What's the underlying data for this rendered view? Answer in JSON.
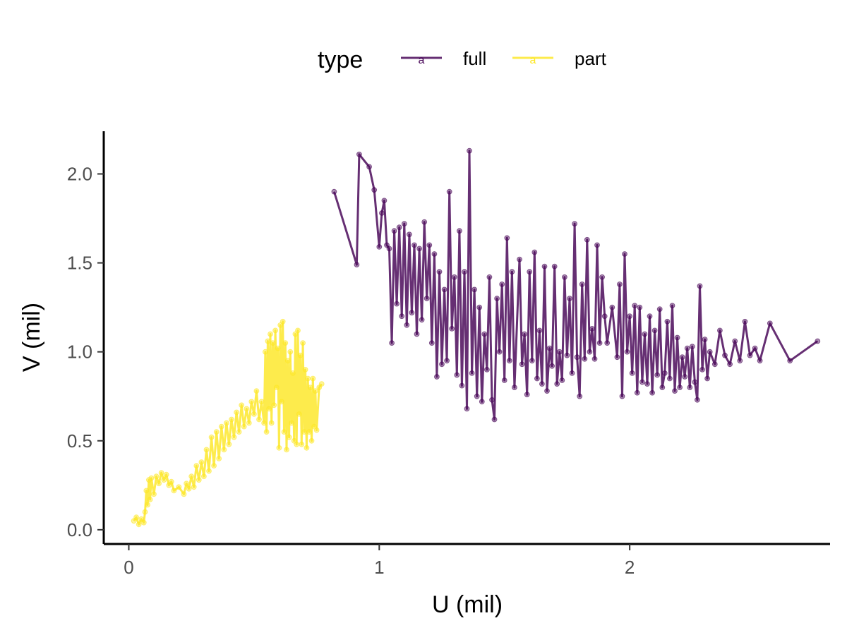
{
  "chart_data": {
    "type": "line",
    "xlabel": "U (mil)",
    "ylabel": "V (mil)",
    "xlim": [
      -0.1,
      2.8
    ],
    "ylim": [
      -0.08,
      2.24
    ],
    "x_ticks": [
      0,
      1,
      2
    ],
    "x_tick_labels": [
      "0",
      "1",
      "2"
    ],
    "y_ticks": [
      0,
      0.5,
      1,
      1.5,
      2
    ],
    "y_tick_labels": [
      "0.0",
      "0.5",
      "1.0",
      "1.5",
      "2.0"
    ],
    "grid": false,
    "legend": {
      "title": "type",
      "position": "top",
      "glyph": "a"
    },
    "series": [
      {
        "name": "full",
        "color": "#440154",
        "points": [
          [
            0.82,
            1.9
          ],
          [
            0.91,
            1.49
          ],
          [
            0.92,
            2.11
          ],
          [
            0.96,
            2.04
          ],
          [
            0.98,
            1.91
          ],
          [
            1.0,
            1.59
          ],
          [
            1.01,
            1.78
          ],
          [
            1.02,
            1.85
          ],
          [
            1.03,
            1.6
          ],
          [
            1.04,
            1.58
          ],
          [
            1.05,
            1.05
          ],
          [
            1.06,
            1.68
          ],
          [
            1.07,
            1.27
          ],
          [
            1.08,
            1.7
          ],
          [
            1.09,
            1.2
          ],
          [
            1.1,
            1.72
          ],
          [
            1.11,
            1.15
          ],
          [
            1.12,
            1.66
          ],
          [
            1.13,
            1.22
          ],
          [
            1.14,
            1.6
          ],
          [
            1.15,
            1.1
          ],
          [
            1.16,
            1.58
          ],
          [
            1.17,
            1.18
          ],
          [
            1.18,
            1.73
          ],
          [
            1.19,
            1.3
          ],
          [
            1.2,
            1.6
          ],
          [
            1.21,
            1.05
          ],
          [
            1.22,
            1.55
          ],
          [
            1.23,
            0.86
          ],
          [
            1.24,
            1.45
          ],
          [
            1.25,
            0.93
          ],
          [
            1.26,
            1.35
          ],
          [
            1.27,
            0.95
          ],
          [
            1.28,
            1.9
          ],
          [
            1.29,
            1.13
          ],
          [
            1.3,
            1.42
          ],
          [
            1.31,
            0.87
          ],
          [
            1.32,
            1.68
          ],
          [
            1.33,
            0.81
          ],
          [
            1.34,
            1.45
          ],
          [
            1.35,
            0.68
          ],
          [
            1.36,
            2.13
          ],
          [
            1.37,
            0.88
          ],
          [
            1.38,
            1.35
          ],
          [
            1.39,
            0.75
          ],
          [
            1.4,
            1.25
          ],
          [
            1.41,
            0.72
          ],
          [
            1.42,
            1.1
          ],
          [
            1.43,
            0.9
          ],
          [
            1.44,
            1.42
          ],
          [
            1.45,
            0.73
          ],
          [
            1.46,
            0.62
          ],
          [
            1.47,
            1.3
          ],
          [
            1.48,
            1.0
          ],
          [
            1.49,
            1.38
          ],
          [
            1.5,
            0.84
          ],
          [
            1.51,
            1.64
          ],
          [
            1.52,
            0.95
          ],
          [
            1.53,
            1.45
          ],
          [
            1.54,
            0.8
          ],
          [
            1.56,
            1.52
          ],
          [
            1.57,
            0.93
          ],
          [
            1.58,
            1.1
          ],
          [
            1.59,
            0.76
          ],
          [
            1.6,
            1.45
          ],
          [
            1.61,
            0.95
          ],
          [
            1.62,
            1.56
          ],
          [
            1.63,
            0.85
          ],
          [
            1.64,
            1.12
          ],
          [
            1.65,
            0.82
          ],
          [
            1.66,
            1.48
          ],
          [
            1.67,
            0.78
          ],
          [
            1.68,
            1.02
          ],
          [
            1.69,
            0.92
          ],
          [
            1.7,
            1.48
          ],
          [
            1.71,
            0.82
          ],
          [
            1.72,
            1.0
          ],
          [
            1.73,
            0.84
          ],
          [
            1.74,
            1.42
          ],
          [
            1.75,
            0.98
          ],
          [
            1.76,
            1.3
          ],
          [
            1.77,
            0.88
          ],
          [
            1.78,
            1.72
          ],
          [
            1.79,
            0.97
          ],
          [
            1.8,
            0.75
          ],
          [
            1.81,
            1.38
          ],
          [
            1.82,
            0.96
          ],
          [
            1.83,
            1.63
          ],
          [
            1.84,
            1.0
          ],
          [
            1.85,
            1.13
          ],
          [
            1.86,
            0.96
          ],
          [
            1.87,
            1.6
          ],
          [
            1.88,
            1.05
          ],
          [
            1.89,
            1.42
          ],
          [
            1.9,
            1.2
          ],
          [
            1.91,
            1.05
          ],
          [
            1.93,
            1.25
          ],
          [
            1.95,
            0.97
          ],
          [
            1.96,
            1.38
          ],
          [
            1.97,
            0.75
          ],
          [
            1.98,
            1.55
          ],
          [
            1.99,
            1.0
          ],
          [
            2.0,
            1.2
          ],
          [
            2.01,
            0.88
          ],
          [
            2.02,
            1.26
          ],
          [
            2.03,
            0.77
          ],
          [
            2.04,
            1.25
          ],
          [
            2.05,
            0.83
          ],
          [
            2.06,
            1.1
          ],
          [
            2.07,
            0.82
          ],
          [
            2.08,
            1.2
          ],
          [
            2.09,
            0.77
          ],
          [
            2.1,
            1.12
          ],
          [
            2.11,
            0.87
          ],
          [
            2.12,
            1.24
          ],
          [
            2.13,
            0.8
          ],
          [
            2.14,
            0.88
          ],
          [
            2.15,
            1.17
          ],
          [
            2.16,
            0.85
          ],
          [
            2.17,
            1.26
          ],
          [
            2.18,
            0.78
          ],
          [
            2.19,
            1.08
          ],
          [
            2.2,
            0.8
          ],
          [
            2.21,
            0.97
          ],
          [
            2.22,
            0.86
          ],
          [
            2.23,
            1.02
          ],
          [
            2.24,
            0.8
          ],
          [
            2.25,
            1.03
          ],
          [
            2.26,
            0.83
          ],
          [
            2.27,
            0.73
          ],
          [
            2.28,
            1.37
          ],
          [
            2.29,
            0.9
          ],
          [
            2.3,
            1.07
          ],
          [
            2.31,
            0.85
          ],
          [
            2.32,
            1.0
          ],
          [
            2.34,
            0.93
          ],
          [
            2.36,
            1.12
          ],
          [
            2.38,
            0.98
          ],
          [
            2.4,
            0.93
          ],
          [
            2.42,
            1.06
          ],
          [
            2.44,
            0.95
          ],
          [
            2.46,
            1.17
          ],
          [
            2.48,
            0.98
          ],
          [
            2.5,
            1.02
          ],
          [
            2.52,
            0.95
          ],
          [
            2.56,
            1.16
          ],
          [
            2.64,
            0.95
          ],
          [
            2.75,
            1.06
          ]
        ]
      },
      {
        "name": "part",
        "color": "#fde725",
        "points": [
          [
            0.02,
            0.05
          ],
          [
            0.03,
            0.07
          ],
          [
            0.04,
            0.03
          ],
          [
            0.05,
            0.06
          ],
          [
            0.06,
            0.04
          ],
          [
            0.065,
            0.1
          ],
          [
            0.07,
            0.22
          ],
          [
            0.075,
            0.14
          ],
          [
            0.08,
            0.28
          ],
          [
            0.085,
            0.17
          ],
          [
            0.09,
            0.29
          ],
          [
            0.1,
            0.2
          ],
          [
            0.11,
            0.3
          ],
          [
            0.12,
            0.26
          ],
          [
            0.13,
            0.32
          ],
          [
            0.14,
            0.28
          ],
          [
            0.15,
            0.31
          ],
          [
            0.16,
            0.25
          ],
          [
            0.17,
            0.27
          ],
          [
            0.18,
            0.22
          ],
          [
            0.2,
            0.24
          ],
          [
            0.22,
            0.2
          ],
          [
            0.23,
            0.26
          ],
          [
            0.24,
            0.23
          ],
          [
            0.25,
            0.3
          ],
          [
            0.26,
            0.24
          ],
          [
            0.27,
            0.36
          ],
          [
            0.28,
            0.28
          ],
          [
            0.29,
            0.38
          ],
          [
            0.3,
            0.3
          ],
          [
            0.31,
            0.45
          ],
          [
            0.32,
            0.33
          ],
          [
            0.33,
            0.52
          ],
          [
            0.34,
            0.36
          ],
          [
            0.35,
            0.55
          ],
          [
            0.36,
            0.4
          ],
          [
            0.37,
            0.58
          ],
          [
            0.38,
            0.45
          ],
          [
            0.39,
            0.6
          ],
          [
            0.4,
            0.48
          ],
          [
            0.41,
            0.62
          ],
          [
            0.42,
            0.52
          ],
          [
            0.43,
            0.66
          ],
          [
            0.44,
            0.55
          ],
          [
            0.45,
            0.7
          ],
          [
            0.46,
            0.58
          ],
          [
            0.47,
            0.68
          ],
          [
            0.48,
            0.6
          ],
          [
            0.49,
            0.72
          ],
          [
            0.5,
            0.65
          ],
          [
            0.51,
            0.78
          ],
          [
            0.52,
            0.62
          ],
          [
            0.53,
            0.72
          ],
          [
            0.54,
            0.6
          ],
          [
            0.545,
            1.0
          ],
          [
            0.55,
            0.55
          ],
          [
            0.555,
            1.06
          ],
          [
            0.56,
            0.68
          ],
          [
            0.565,
            1.1
          ],
          [
            0.57,
            0.6
          ],
          [
            0.575,
            1.05
          ],
          [
            0.58,
            0.7
          ],
          [
            0.585,
            1.12
          ],
          [
            0.59,
            0.8
          ],
          [
            0.595,
            1.02
          ],
          [
            0.6,
            0.46
          ],
          [
            0.605,
            1.15
          ],
          [
            0.61,
            0.72
          ],
          [
            0.615,
            1.17
          ],
          [
            0.62,
            0.55
          ],
          [
            0.625,
            1.05
          ],
          [
            0.63,
            0.45
          ],
          [
            0.635,
            0.95
          ],
          [
            0.64,
            0.52
          ],
          [
            0.645,
            1.0
          ],
          [
            0.65,
            0.6
          ],
          [
            0.655,
            0.88
          ],
          [
            0.66,
            0.5
          ],
          [
            0.665,
            1.1
          ],
          [
            0.67,
            0.48
          ],
          [
            0.675,
            1.12
          ],
          [
            0.68,
            0.65
          ],
          [
            0.685,
            0.98
          ],
          [
            0.69,
            0.48
          ],
          [
            0.695,
            1.05
          ],
          [
            0.7,
            0.55
          ],
          [
            0.705,
            0.9
          ],
          [
            0.71,
            0.46
          ],
          [
            0.715,
            0.85
          ],
          [
            0.72,
            0.55
          ],
          [
            0.725,
            0.8
          ],
          [
            0.73,
            0.5
          ],
          [
            0.735,
            0.85
          ],
          [
            0.74,
            0.58
          ],
          [
            0.745,
            0.78
          ],
          [
            0.75,
            0.56
          ],
          [
            0.76,
            0.8
          ],
          [
            0.77,
            0.82
          ]
        ]
      }
    ]
  }
}
